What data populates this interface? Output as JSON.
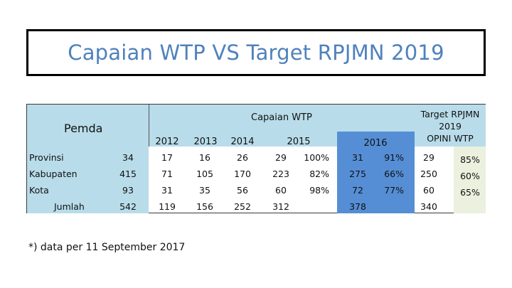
{
  "title": "Capaian WTP VS Target RPJMN 2019",
  "header": {
    "pemda": "Pemda",
    "capaian": "Capaian WTP",
    "years": [
      "2012",
      "2013",
      "2014",
      "2015",
      "2016"
    ],
    "target": [
      "Target RPJMN",
      "2019",
      "OPINI WTP"
    ]
  },
  "rows": [
    {
      "label": "Provinsi",
      "total": "34",
      "y2012": "17",
      "y2013": "16",
      "y2014": "26",
      "y2015": "29",
      "p2015": "100%",
      "y2016": "31",
      "p2016": "91%",
      "target": "29",
      "ptarget": "85%"
    },
    {
      "label": "Kabupaten",
      "total": "415",
      "y2012": "71",
      "y2013": "105",
      "y2014": "170",
      "y2015": "223",
      "p2015": "82%",
      "y2016": "275",
      "p2016": "66%",
      "target": "250",
      "ptarget": "60%"
    },
    {
      "label": "Kota",
      "total": "93",
      "y2012": "31",
      "y2013": "35",
      "y2014": "56",
      "y2015": "60",
      "p2015": "98%",
      "y2016": "72",
      "p2016": "77%",
      "target": "60",
      "ptarget": "65%"
    }
  ],
  "jumlah": {
    "label": "Jumlah",
    "total": "542",
    "y2012": "119",
    "y2013": "156",
    "y2014": "252",
    "y2015": "312",
    "y2016": "378",
    "target": "340"
  },
  "note": "*) data per 11 September 2017"
}
